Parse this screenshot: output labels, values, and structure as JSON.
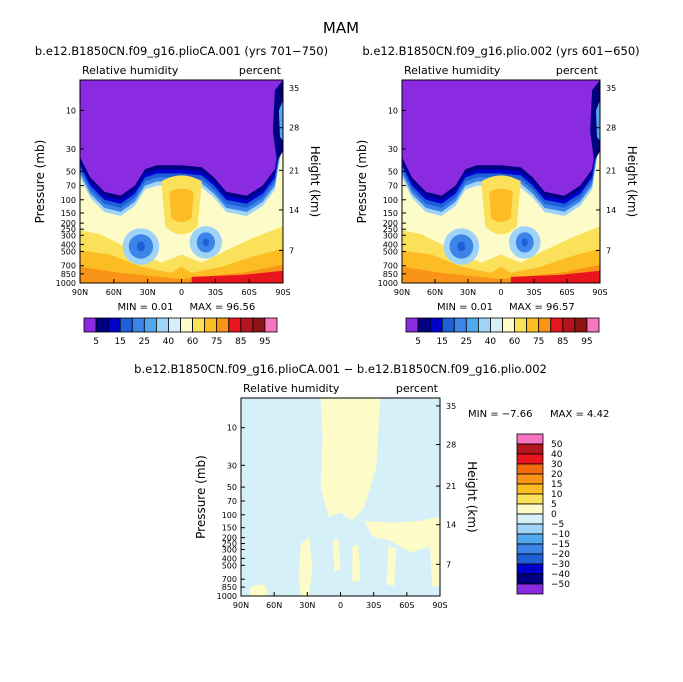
{
  "figure_title": "MAM",
  "colors": {
    "purple": "#8a2be2",
    "navy": "#000080",
    "dark_blue": "#0000cd",
    "blue": "#1e5fd8",
    "med_blue": "#3c84e8",
    "sky_blue": "#52a8f0",
    "light_sky": "#9fd4f8",
    "pale_cyan": "#d6f0fa",
    "pale_yellow": "#fdfbc8",
    "yellow": "#fbe05a",
    "gold": "#fbbc24",
    "orange": "#f99418",
    "dark_orange": "#f56b10",
    "red": "#e8141e",
    "dark_red": "#b4141c",
    "brown_red": "#8c1414",
    "pink": "#f676c0"
  },
  "chart_data": [
    {
      "type": "heatmap",
      "title": "b.e12.B1850CN.f09_g16.plioCA.001 (yrs 701−750)",
      "subtitle_left": "Relative humidity",
      "subtitle_right": "percent",
      "ylabel": "Pressure (mb)",
      "y2label": "Height (km)",
      "x_ticks": [
        "90N",
        "60N",
        "30N",
        "0",
        "30S",
        "60S",
        "90S"
      ],
      "y_ticks": [
        "10",
        "30",
        "50",
        "70",
        "100",
        "150",
        "200",
        "250",
        "300",
        "400",
        "500",
        "700",
        "850",
        "1000"
      ],
      "y2_ticks": [
        "35",
        "28",
        "21",
        "14",
        "7"
      ],
      "min_label": "MIN =   0.01",
      "max_label": "MAX =  96.56",
      "colorbar": {
        "orientation": "horizontal",
        "labels": [
          "5",
          "15",
          "25",
          "40",
          "60",
          "75",
          "85",
          "95"
        ],
        "colors": [
          "#8a2be2",
          "#000080",
          "#0000cd",
          "#1e5fd8",
          "#3c84e8",
          "#52a8f0",
          "#9fd4f8",
          "#d6f0fa",
          "#fdfbc8",
          "#fbe05a",
          "#fbbc24",
          "#f99418",
          "#e8141e",
          "#b4141c",
          "#8c1414",
          "#f676c0"
        ]
      }
    },
    {
      "type": "heatmap",
      "title": "b.e12.B1850CN.f09_g16.plio.002 (yrs 601−650)",
      "subtitle_left": "Relative humidity",
      "subtitle_right": "percent",
      "ylabel": "Pressure (mb)",
      "y2label": "Height (km)",
      "x_ticks": [
        "90N",
        "60N",
        "30N",
        "0",
        "30S",
        "60S",
        "90S"
      ],
      "y_ticks": [
        "10",
        "30",
        "50",
        "70",
        "100",
        "150",
        "200",
        "250",
        "300",
        "400",
        "500",
        "700",
        "850",
        "1000"
      ],
      "y2_ticks": [
        "35",
        "28",
        "21",
        "14",
        "7"
      ],
      "min_label": "MIN =   0.01",
      "max_label": "MAX =  96.57"
    },
    {
      "type": "heatmap",
      "title": "b.e12.B1850CN.f09_g16.plioCA.001 − b.e12.B1850CN.f09_g16.plio.002",
      "subtitle_left": "Relative humidity",
      "subtitle_right": "percent",
      "ylabel": "Pressure (mb)",
      "y2label": "Height (km)",
      "x_ticks": [
        "90N",
        "60N",
        "30N",
        "0",
        "30S",
        "60S",
        "90S"
      ],
      "y_ticks": [
        "10",
        "30",
        "50",
        "70",
        "100",
        "150",
        "200",
        "250",
        "300",
        "400",
        "500",
        "700",
        "850",
        "1000"
      ],
      "y2_ticks": [
        "35",
        "28",
        "21",
        "14",
        "7"
      ],
      "min_label": "MIN =  −7.66",
      "max_label": "MAX =   4.42",
      "colorbar": {
        "orientation": "vertical",
        "labels": [
          "50",
          "40",
          "30",
          "20",
          "15",
          "10",
          "5",
          "0",
          "−5",
          "−10",
          "−15",
          "−20",
          "−30",
          "−40",
          "−50"
        ],
        "colors": [
          "#f676c0",
          "#b4141c",
          "#e8141e",
          "#f56b10",
          "#f99418",
          "#fbbc24",
          "#fbe05a",
          "#fdfbc8",
          "#d6f0fa",
          "#9fd4f8",
          "#52a8f0",
          "#3c84e8",
          "#1e5fd8",
          "#0000cd",
          "#000080",
          "#8a2be2"
        ]
      }
    }
  ]
}
